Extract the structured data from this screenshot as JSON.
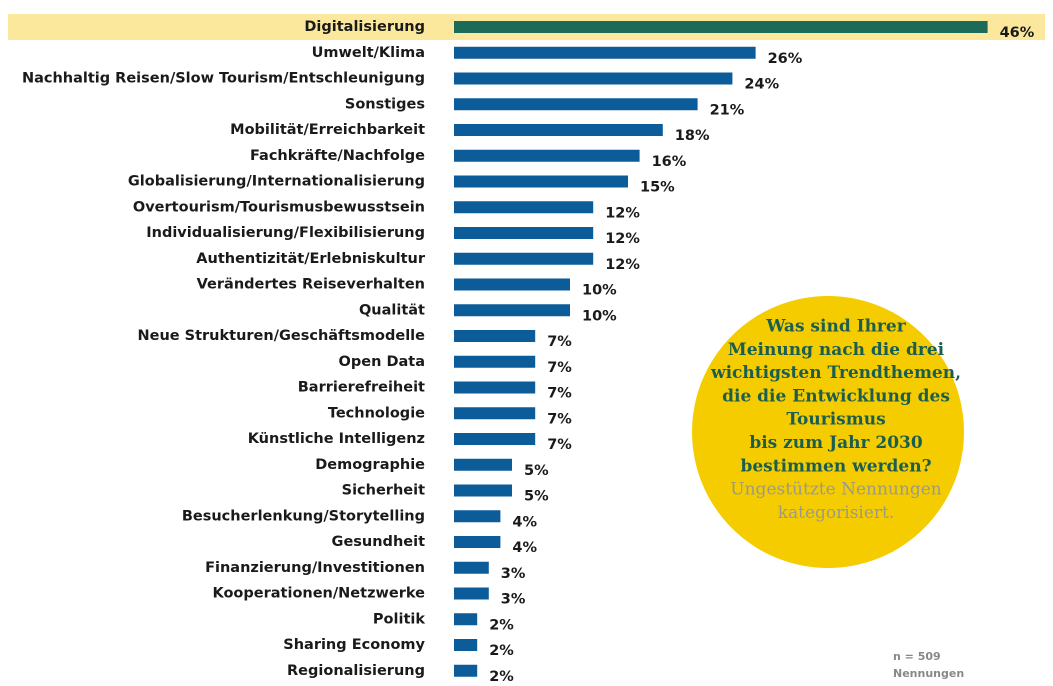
{
  "chart_data": {
    "type": "bar",
    "orientation": "horizontal",
    "categories": [
      "Digitalisierung",
      "Umwelt/Klima",
      "Nachhaltig Reisen/Slow Tourism/Entschleunigung",
      "Sonstiges",
      "Mobilität/Erreichbarkeit",
      "Fachkräfte/Nachfolge",
      "Globalisierung/Internationalisierung",
      "Overtourism/Tourismusbewusstsein",
      "Individualisierung/Flexibilisierung",
      "Authentizität/Erlebniskultur",
      "Verändertes Reiseverhalten",
      "Qualität",
      "Neue Strukturen/Geschäftsmodelle",
      "Open Data",
      "Barrierefreiheit",
      "Technologie",
      "Künstliche Intelligenz",
      "Demographie",
      "Sicherheit",
      "Besucherlenkung/Storytelling",
      "Gesundheit",
      "Finanzierung/Investitionen",
      "Kooperationen/Netzwerke",
      "Politik",
      "Sharing Economy",
      "Regionalisierung"
    ],
    "values": [
      46,
      26,
      24,
      21,
      18,
      16,
      15,
      12,
      12,
      12,
      10,
      10,
      7,
      7,
      7,
      7,
      7,
      5,
      5,
      4,
      4,
      3,
      3,
      2,
      2,
      2
    ],
    "value_labels": [
      "46%",
      "26%",
      "24%",
      "21%",
      "18%",
      "16%",
      "15%",
      "12%",
      "12%",
      "12%",
      "10%",
      "10%",
      "7%",
      "7%",
      "7%",
      "7%",
      "7%",
      "5%",
      "5%",
      "4%",
      "4%",
      "3%",
      "3%",
      "2%",
      "2%",
      "2%"
    ],
    "color": "#0d5c9a",
    "colors": [
      "#1b6b58",
      "#0d5c9a",
      "#0d5c9a",
      "#0d5c9a",
      "#0d5c9a",
      "#0d5c9a",
      "#0d5c9a",
      "#0d5c9a",
      "#0d5c9a",
      "#0d5c9a",
      "#0d5c9a",
      "#0d5c9a",
      "#0d5c9a",
      "#0d5c9a",
      "#0d5c9a",
      "#0d5c9a",
      "#0d5c9a",
      "#0d5c9a",
      "#0d5c9a",
      "#0d5c9a",
      "#0d5c9a",
      "#0d5c9a",
      "#0d5c9a",
      "#0d5c9a",
      "#0d5c9a",
      "#0d5c9a"
    ],
    "xlim": [
      0,
      50
    ],
    "annotation": {
      "question": [
        "Was sind Ihrer",
        "Meinung nach die drei",
        "wichtigsten Trendthemen,",
        "die die Entwicklung des",
        "Tourismus",
        "bis zum Jahr 2030",
        "bestimmen werden?"
      ],
      "subtext": [
        "Ungestützte Nennungen",
        "kategorisiert."
      ]
    },
    "note": [
      "n = 509",
      "Nennungen"
    ]
  }
}
